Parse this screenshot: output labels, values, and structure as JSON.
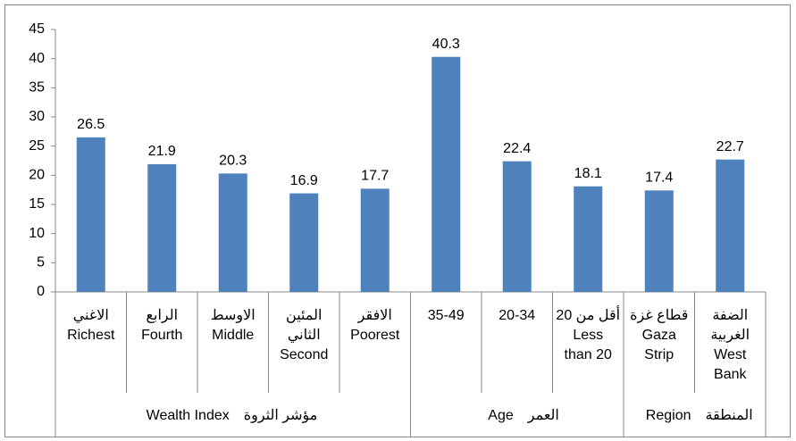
{
  "chart_data": {
    "type": "bar",
    "color": "#4f81bd",
    "ylim": [
      0,
      45
    ],
    "yticks": [
      0,
      5,
      10,
      15,
      20,
      25,
      30,
      35,
      40,
      45
    ],
    "grid": false,
    "groups": [
      {
        "name": [
          "Wealth Index",
          "مؤشر الثروة"
        ],
        "categories": [
          [
            "الاغني",
            "Richest"
          ],
          [
            "الرابع",
            "Fourth"
          ],
          [
            "الاوسط",
            "Middle"
          ],
          [
            "المئين",
            "الثاني",
            "Second"
          ],
          [
            "الافقر",
            "Poorest"
          ]
        ],
        "values": [
          26.5,
          21.9,
          20.3,
          16.9,
          17.7
        ]
      },
      {
        "name": [
          "Age",
          "العمر"
        ],
        "categories": [
          [
            "35-49"
          ],
          [
            "20-34"
          ],
          [
            "أقل من 20",
            "Less",
            "than 20"
          ]
        ],
        "values": [
          40.3,
          22.4,
          18.1
        ]
      },
      {
        "name": [
          "Region",
          "المنطقة"
        ],
        "categories": [
          [
            "قطاع غزة",
            "Gaza",
            "Strip"
          ],
          [
            "الضفة",
            "الغربية",
            "West",
            "Bank"
          ]
        ],
        "values": [
          17.4,
          22.7
        ]
      }
    ]
  }
}
